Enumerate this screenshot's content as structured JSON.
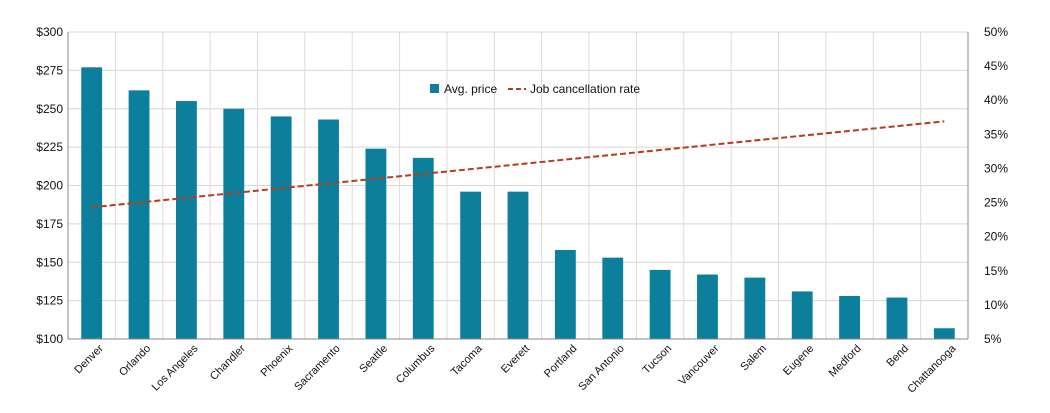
{
  "chart_data": {
    "type": "bar",
    "categories": [
      "Denver",
      "Orlando",
      "Los Angeles",
      "Chandler",
      "Phoenix",
      "Sacramento",
      "Seattle",
      "Columbus",
      "Tacoma",
      "Everett",
      "Portland",
      "San Antonio",
      "Tucson",
      "Vancouver",
      "Salem",
      "Eugene",
      "Medford",
      "Bend",
      "Chattanooga"
    ],
    "series": [
      {
        "name": "Avg. price",
        "type": "bar",
        "axis": "left",
        "color": "#0b7f9c",
        "values": [
          277,
          262,
          255,
          250,
          245,
          243,
          224,
          218,
          196,
          196,
          158,
          153,
          145,
          142,
          140,
          131,
          128,
          127,
          107
        ]
      },
      {
        "name": "Job cancellation rate",
        "type": "line",
        "axis": "right",
        "color": "#b83a1f",
        "style": "dashed",
        "values": [
          24.3,
          25.0,
          25.7,
          26.4,
          27.1,
          27.8,
          28.5,
          29.2,
          29.9,
          30.6,
          31.3,
          32.0,
          32.7,
          33.4,
          34.1,
          34.8,
          35.5,
          36.2,
          36.9
        ]
      }
    ],
    "y_left": {
      "min": 100,
      "max": 300,
      "ticks": [
        100,
        125,
        150,
        175,
        200,
        225,
        250,
        275,
        300
      ],
      "tick_labels": [
        "$100",
        "$125",
        "$150",
        "$175",
        "$200",
        "$225",
        "$250",
        "$275",
        "$300"
      ]
    },
    "y_right": {
      "min": 5,
      "max": 50,
      "ticks": [
        5,
        10,
        15,
        20,
        25,
        30,
        35,
        40,
        45,
        50
      ],
      "tick_labels": [
        "5%",
        "10%",
        "15%",
        "20%",
        "25%",
        "30%",
        "35%",
        "40%",
        "45%",
        "50%"
      ]
    },
    "grid": true,
    "legend_position": "top-center"
  }
}
